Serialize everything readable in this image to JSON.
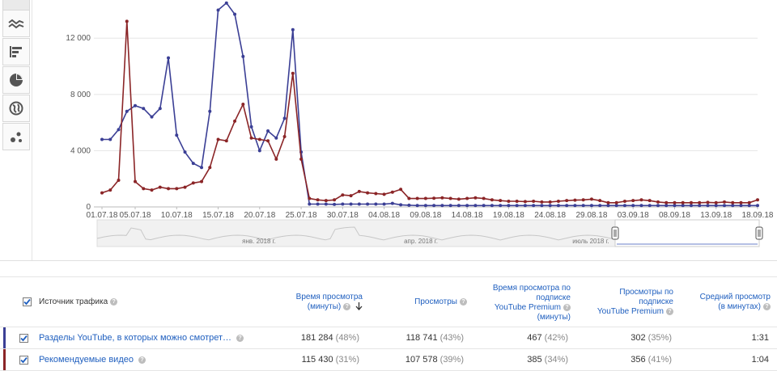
{
  "toolbar": {
    "items": [
      {
        "name": "line-chart-icon"
      },
      {
        "name": "bar-chart-icon"
      },
      {
        "name": "pie-chart-icon"
      },
      {
        "name": "globe-icon"
      },
      {
        "name": "bubble-chart-icon"
      }
    ]
  },
  "chart_data": {
    "type": "line",
    "x_ticks": [
      "01.07.18",
      "05.07.18",
      "10.07.18",
      "15.07.18",
      "20.07.18",
      "25.07.18",
      "30.07.18",
      "04.08.18",
      "09.08.18",
      "14.08.18",
      "19.08.18",
      "24.08.18",
      "29.08.18",
      "03.09.18",
      "08.09.18",
      "13.09.18",
      "18.09.18"
    ],
    "y_ticks": [
      "0",
      "4 000",
      "8 000",
      "12 000"
    ],
    "ylim": [
      0,
      14600
    ],
    "num_days": 80,
    "series": [
      {
        "name": "Разделы YouTube, в которых можно смотреть",
        "color": "#3b3f95",
        "values": [
          4800,
          4800,
          5500,
          6800,
          7200,
          7000,
          6400,
          7000,
          10600,
          5100,
          3900,
          3100,
          2800,
          6800,
          14000,
          14500,
          13700,
          10700,
          5700,
          4000,
          5400,
          4900,
          6300,
          12600,
          3900,
          200,
          200,
          200,
          180,
          200,
          200,
          200,
          200,
          200,
          200,
          250,
          150,
          120,
          100,
          100,
          100,
          100,
          100,
          100,
          100,
          100,
          100,
          100,
          100,
          100,
          100,
          100,
          100,
          100,
          100,
          100,
          100,
          100,
          100,
          100,
          100,
          100,
          100,
          100,
          100,
          100,
          100,
          100,
          100,
          100,
          100,
          100,
          100,
          100,
          100,
          100,
          100,
          100,
          100,
          100
        ]
      },
      {
        "name": "Рекомендуемые видео",
        "color": "#8b2527",
        "values": [
          1000,
          1200,
          1900,
          13200,
          1800,
          1300,
          1200,
          1400,
          1300,
          1300,
          1400,
          1700,
          1800,
          2800,
          4800,
          4700,
          6100,
          7300,
          4900,
          4800,
          4700,
          3400,
          5000,
          9500,
          3400,
          600,
          500,
          450,
          500,
          850,
          800,
          1100,
          1000,
          950,
          900,
          1050,
          1250,
          600,
          600,
          600,
          620,
          650,
          600,
          550,
          600,
          650,
          600,
          500,
          450,
          400,
          400,
          380,
          400,
          350,
          350,
          400,
          450,
          480,
          500,
          550,
          450,
          300,
          300,
          400,
          450,
          500,
          450,
          350,
          300,
          300,
          300,
          300,
          300,
          320,
          300,
          350,
          300,
          300,
          300,
          500
        ]
      }
    ]
  },
  "navigator": {
    "labels": [
      "янв. 2018 г.",
      "апр. 2018 г.",
      "июль 2018 г."
    ]
  },
  "table": {
    "headers": {
      "source": "Источник трафика",
      "watch_time": [
        "Время просмотра",
        "(минуты)"
      ],
      "views": "Просмотры",
      "premium_watch_time": [
        "Время просмотра по",
        "подписке",
        "YouTube Premium",
        "(минуты)"
      ],
      "premium_views": [
        "Просмотры по",
        "подписке",
        "YouTube Premium"
      ],
      "avg_view": [
        "Средний просмотр",
        "(в минутах)"
      ]
    },
    "rows": [
      {
        "source": "Разделы YouTube, в которых можно смотрет…",
        "watch_time": "181 284",
        "watch_pct": "(48%)",
        "views": "118 741",
        "views_pct": "(43%)",
        "premium_time": "467",
        "premium_time_pct": "(42%)",
        "premium_views": "302",
        "premium_views_pct": "(35%)",
        "avg": "1:31",
        "color": "#3b3f95"
      },
      {
        "source": "Рекомендуемые видео",
        "watch_time": "115 430",
        "watch_pct": "(31%)",
        "views": "107 578",
        "views_pct": "(39%)",
        "premium_time": "385",
        "premium_time_pct": "(34%)",
        "premium_views": "356",
        "premium_views_pct": "(41%)",
        "avg": "1:04",
        "color": "#8b2527"
      }
    ]
  }
}
